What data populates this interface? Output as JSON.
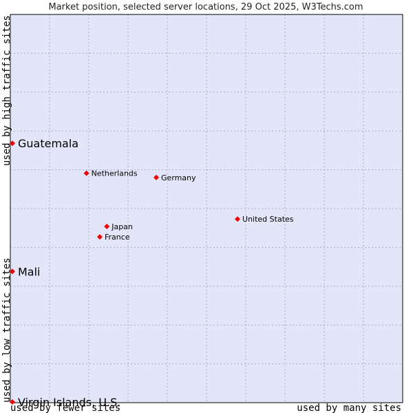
{
  "chart_data": {
    "type": "scatter",
    "title": "Market position, selected server locations, 29 Oct 2025, W3Techs.com",
    "xlabel_left": "used by fewer sites",
    "xlabel_right": "used by many sites",
    "ylabel_bottom": "used by low traffic sites",
    "ylabel_top": "used by high traffic sites",
    "xlim": [
      0,
      100
    ],
    "ylim": [
      0,
      100
    ],
    "grid": true,
    "colors": {
      "plot_bg": "#e3e5f8",
      "grid": "#a9abbe",
      "frame": "#000000",
      "point": "#ee0000"
    },
    "points": [
      {
        "name": "Guatemala",
        "x": 0.4,
        "y": 66.8,
        "size": "large"
      },
      {
        "name": "Netherlands",
        "x": 19.4,
        "y": 59.1,
        "size": "small"
      },
      {
        "name": "Germany",
        "x": 37.2,
        "y": 58.0,
        "size": "small"
      },
      {
        "name": "United States",
        "x": 57.9,
        "y": 47.3,
        "size": "small"
      },
      {
        "name": "Japan",
        "x": 24.6,
        "y": 45.4,
        "size": "small"
      },
      {
        "name": "France",
        "x": 22.8,
        "y": 42.7,
        "size": "small"
      },
      {
        "name": "Mali",
        "x": 0.1,
        "y": 33.8,
        "size": "large"
      },
      {
        "name": "Virgin Islands, U.S.",
        "x": 0.0,
        "y": 0.0,
        "size": "large"
      }
    ]
  }
}
